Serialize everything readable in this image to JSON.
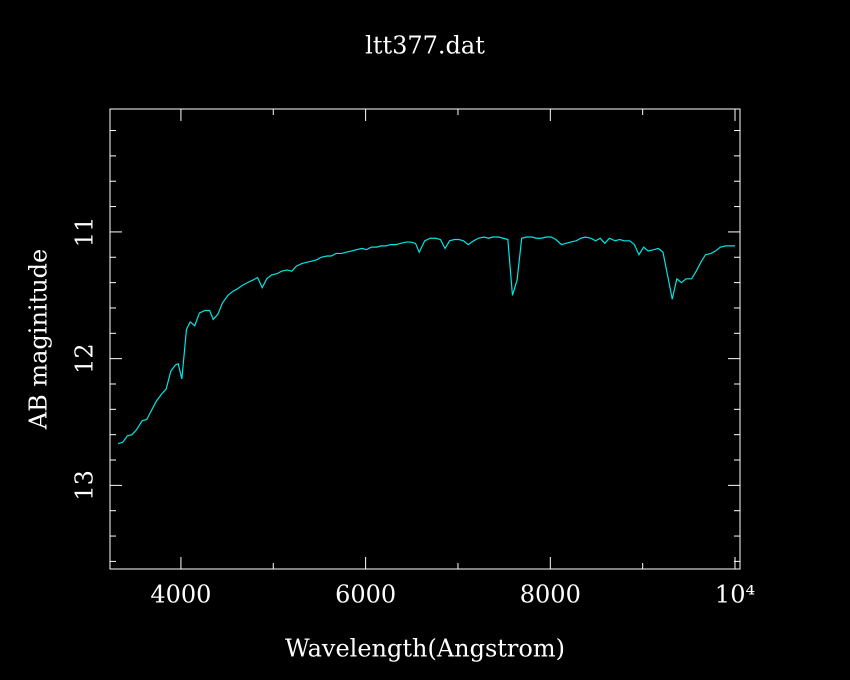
{
  "chart_data": {
    "type": "line",
    "title": "ltt377.dat",
    "x_label": "Wavelength(Angstrom)",
    "y_label": "AB maginitude",
    "x": [
      3320,
      3370,
      3420,
      3470,
      3520,
      3580,
      3630,
      3680,
      3730,
      3790,
      3840,
      3890,
      3940,
      3970,
      4010,
      4060,
      4100,
      4150,
      4200,
      4260,
      4310,
      4350,
      4400,
      4450,
      4510,
      4560,
      4610,
      4670,
      4720,
      4780,
      4830,
      4880,
      4930,
      4980,
      5040,
      5090,
      5150,
      5200,
      5250,
      5310,
      5360,
      5420,
      5470,
      5520,
      5580,
      5630,
      5680,
      5740,
      5790,
      5850,
      5900,
      5960,
      6010,
      6060,
      6120,
      6170,
      6220,
      6270,
      6330,
      6380,
      6440,
      6490,
      6540,
      6580,
      6640,
      6700,
      6760,
      6810,
      6860,
      6910,
      6960,
      7010,
      7060,
      7110,
      7170,
      7220,
      7280,
      7330,
      7380,
      7440,
      7490,
      7540,
      7590,
      7640,
      7690,
      7740,
      7800,
      7850,
      7900,
      7960,
      8010,
      8060,
      8120,
      8170,
      8220,
      8280,
      8330,
      8380,
      8440,
      8490,
      8540,
      8590,
      8640,
      8700,
      8750,
      8800,
      8860,
      8910,
      8960,
      9010,
      9060,
      9120,
      9170,
      9220,
      9280,
      9320,
      9370,
      9420,
      9470,
      9530,
      9580,
      9630,
      9680,
      9740,
      9790,
      9840,
      9900,
      9950,
      10000
    ],
    "series": [
      {
        "name": "ltt377.dat",
        "color": "#00e5e5",
        "values": [
          12.67,
          12.66,
          12.61,
          12.6,
          12.56,
          12.49,
          12.48,
          12.41,
          12.34,
          12.28,
          12.24,
          12.1,
          12.05,
          12.04,
          12.16,
          11.77,
          11.71,
          11.74,
          11.64,
          11.62,
          11.62,
          11.69,
          11.65,
          11.56,
          11.5,
          11.47,
          11.45,
          11.42,
          11.4,
          11.38,
          11.36,
          11.44,
          11.37,
          11.34,
          11.33,
          11.31,
          11.3,
          11.31,
          11.27,
          11.25,
          11.24,
          11.23,
          11.22,
          11.2,
          11.19,
          11.19,
          11.17,
          11.17,
          11.16,
          11.15,
          11.14,
          11.13,
          11.14,
          11.12,
          11.12,
          11.11,
          11.11,
          11.1,
          11.1,
          11.09,
          11.08,
          11.08,
          11.09,
          11.16,
          11.07,
          11.05,
          11.05,
          11.06,
          11.13,
          11.07,
          11.06,
          11.06,
          11.07,
          11.1,
          11.07,
          11.05,
          11.04,
          11.05,
          11.04,
          11.04,
          11.05,
          11.06,
          11.5,
          11.38,
          11.05,
          11.04,
          11.04,
          11.05,
          11.05,
          11.04,
          11.04,
          11.06,
          11.1,
          11.09,
          11.08,
          11.07,
          11.05,
          11.04,
          11.05,
          11.07,
          11.05,
          11.09,
          11.05,
          11.07,
          11.06,
          11.07,
          11.07,
          11.1,
          11.18,
          11.12,
          11.15,
          11.14,
          11.13,
          11.16,
          11.38,
          11.53,
          11.37,
          11.4,
          11.37,
          11.37,
          11.31,
          11.24,
          11.18,
          11.17,
          11.15,
          11.12,
          11.11,
          11.11,
          11.11
        ]
      }
    ],
    "xlim": [
      3232,
      10054
    ],
    "xticks": [
      4000,
      6000,
      8000,
      {
        "value": 10000,
        "label": "10⁴"
      }
    ],
    "xminor_ticks": [
      5000,
      7000,
      9000
    ],
    "ylim": [
      13.66,
      10.03
    ],
    "yticks": [
      11,
      12,
      13
    ],
    "yminor_ticks": [
      10.2,
      10.4,
      10.6,
      10.8,
      11.2,
      11.4,
      11.6,
      11.8,
      12.2,
      12.4,
      12.6,
      12.8,
      13.2,
      13.4,
      13.6
    ]
  }
}
